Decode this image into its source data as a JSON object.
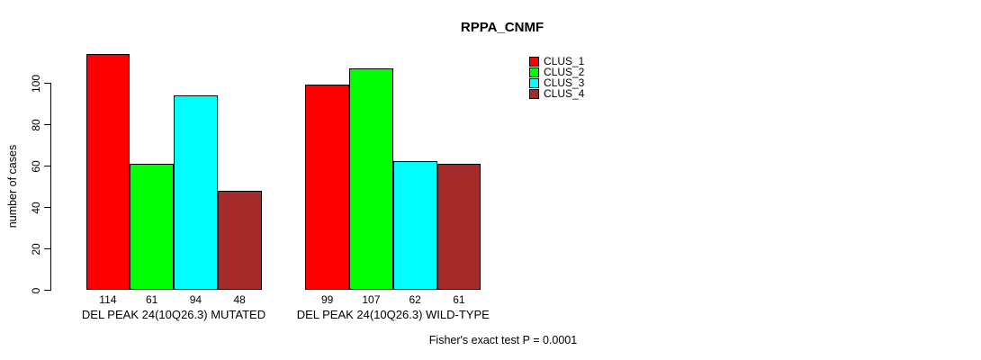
{
  "title": "RPPA_CNMF",
  "y_axis": {
    "label": "number of cases",
    "ticks": [
      0,
      20,
      40,
      60,
      80,
      100
    ]
  },
  "annotation": "Fisher's exact test P = 0.0001",
  "legend": {
    "position": "top-right",
    "items": [
      {
        "label": "CLUS_1",
        "color": "#ff0000"
      },
      {
        "label": "CLUS_2",
        "color": "#00ff00"
      },
      {
        "label": "CLUS_3",
        "color": "#00ffff"
      },
      {
        "label": "CLUS_4",
        "color": "#a52a2a"
      }
    ]
  },
  "chart_data": {
    "type": "bar",
    "title": "RPPA_CNMF",
    "xlabel": "",
    "ylabel": "number of cases",
    "ylim": [
      0,
      115
    ],
    "yticks": [
      0,
      20,
      40,
      60,
      80,
      100
    ],
    "grid": false,
    "legend_position": "top-right",
    "bar_value_labels": true,
    "categories": [
      "DEL PEAK 24(10Q26.3) MUTATED",
      "DEL PEAK 24(10Q26.3) WILD-TYPE"
    ],
    "series": [
      {
        "name": "CLUS_1",
        "color": "#ff0000",
        "values": [
          114,
          99
        ]
      },
      {
        "name": "CLUS_2",
        "color": "#00ff00",
        "values": [
          61,
          107
        ]
      },
      {
        "name": "CLUS_3",
        "color": "#00ffff",
        "values": [
          94,
          62
        ]
      },
      {
        "name": "CLUS_4",
        "color": "#a52a2a",
        "values": [
          48,
          61
        ]
      }
    ],
    "annotation": "Fisher's exact test P = 0.0001"
  }
}
